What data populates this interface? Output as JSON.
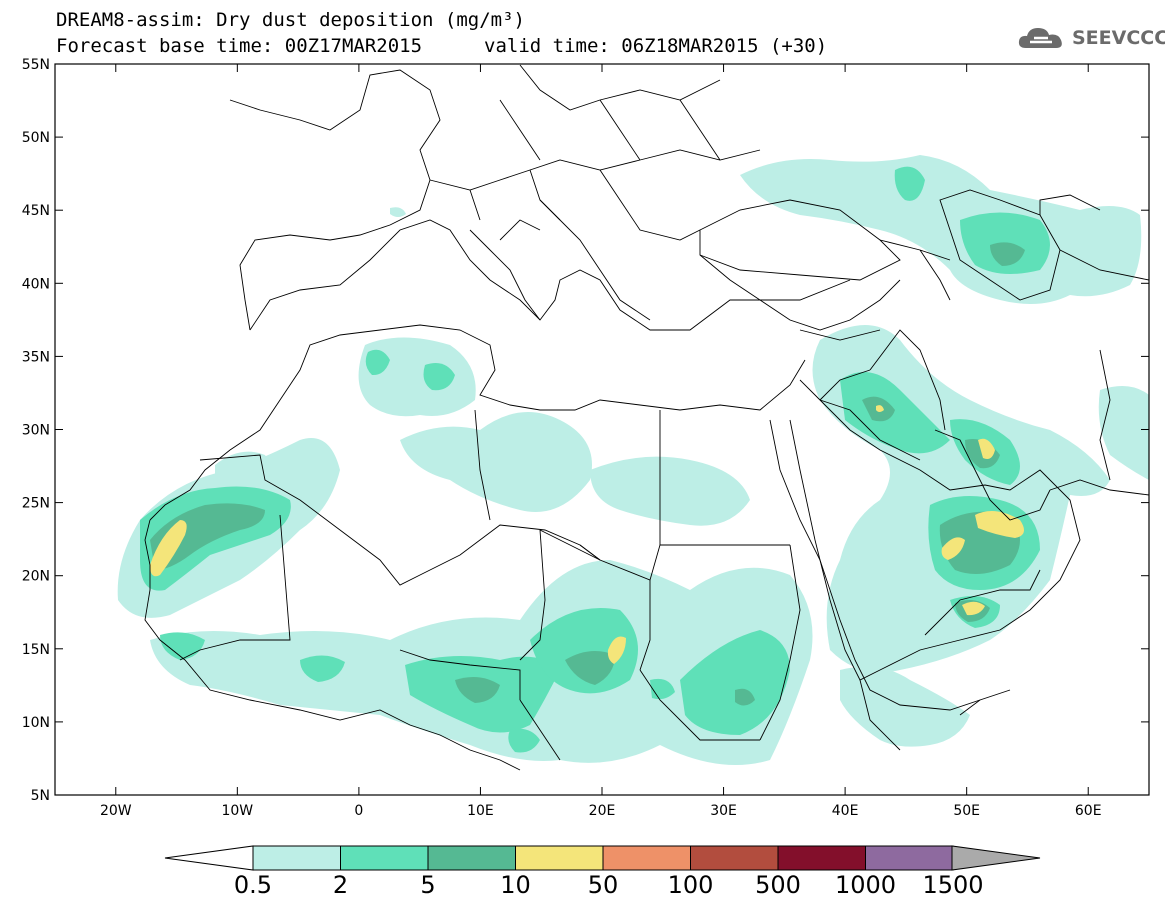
{
  "header": {
    "title": "DREAM8-assim: Dry dust deposition (mg/m³)",
    "base_time": "Forecast base time: 00Z17MAR2015",
    "valid_time": "valid time: 06Z18MAR2015 (+30)",
    "logo_text": "SEEVCCC",
    "logo_icon": "cloud-logo-icon"
  },
  "map": {
    "lon_range": [
      -25,
      65
    ],
    "lat_range": [
      5,
      55
    ],
    "lat_ticks": [
      "55N",
      "50N",
      "45N",
      "40N",
      "35N",
      "30N",
      "25N",
      "20N",
      "15N",
      "10N",
      "5N"
    ],
    "lat_values": [
      55,
      50,
      45,
      40,
      35,
      30,
      25,
      20,
      15,
      10,
      5
    ],
    "lon_ticks": [
      "20W",
      "10W",
      "0",
      "10E",
      "20E",
      "30E",
      "40E",
      "50E",
      "60E"
    ],
    "lon_values": [
      -20,
      -10,
      0,
      10,
      20,
      30,
      40,
      50,
      60
    ],
    "fill_colors": {
      "lvl1": "#bdeee6",
      "lvl2": "#5fe0b8",
      "lvl3": "#55b993",
      "lvl4": "#f4e57a"
    }
  },
  "legend": {
    "labels": [
      "0.5",
      "2",
      "5",
      "10",
      "50",
      "100",
      "500",
      "1000",
      "1500"
    ],
    "colors": [
      "#bdeee6",
      "#5fe0b8",
      "#55b993",
      "#f4e57a",
      "#ee9168",
      "#b24d3e",
      "#830f2b",
      "#8e6a9f",
      "#aaaaaa"
    ]
  }
}
